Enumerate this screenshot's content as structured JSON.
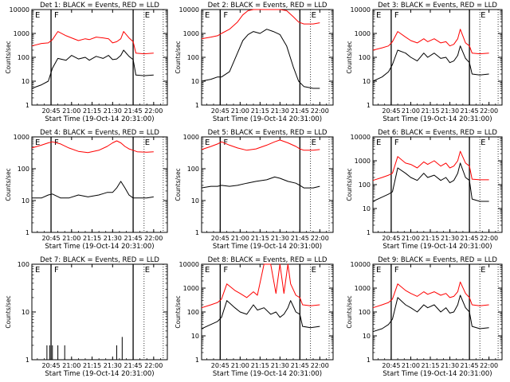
{
  "figure": {
    "xlabel_prefix": "Start Time",
    "start_time": "(19-Oct-14 20:31:00)",
    "ylabel": "Counts/sec",
    "x_ticks": [
      "20:45",
      "21:00",
      "21:15",
      "21:30",
      "21:45",
      "22:00"
    ],
    "marker_labels": [
      "E",
      "F",
      "E"
    ],
    "colors": {
      "events": "#000000",
      "lld": "#ff0000"
    }
  },
  "chart_data": [
    {
      "type": "line",
      "title": "Det 1: BLACK = Events, RED = LLD",
      "ylim": [
        1,
        10000
      ],
      "yscale": "log",
      "y_tick_labels": [
        "1",
        "10",
        "100",
        "1000",
        "10000"
      ],
      "x_range": [
        "20:31",
        "22:10"
      ],
      "markers": [
        "20:45",
        "21:45"
      ],
      "dotted_lines": [
        "21:53",
        "22:07"
      ],
      "series": [
        {
          "name": "BLACK = Events",
          "color": "#000000",
          "x": [
            "20:31",
            "20:38",
            "20:43",
            "20:46",
            "20:50",
            "20:56",
            "21:00",
            "21:05",
            "21:10",
            "21:13",
            "21:18",
            "21:23",
            "21:27",
            "21:30",
            "21:33",
            "21:36",
            "21:38",
            "21:42",
            "21:45",
            "21:47",
            "21:53",
            "22:00"
          ],
          "y": [
            5,
            7,
            10,
            35,
            90,
            75,
            120,
            85,
            100,
            75,
            110,
            90,
            120,
            80,
            85,
            120,
            200,
            110,
            80,
            18,
            17,
            18
          ]
        },
        {
          "name": "RED = LLD",
          "color": "#ff0000",
          "x": [
            "20:31",
            "20:38",
            "20:43",
            "20:46",
            "20:50",
            "20:56",
            "21:00",
            "21:05",
            "21:10",
            "21:13",
            "21:18",
            "21:23",
            "21:27",
            "21:30",
            "21:33",
            "21:36",
            "21:38",
            "21:42",
            "21:45",
            "21:47",
            "21:53",
            "22:00"
          ],
          "y": [
            300,
            380,
            400,
            550,
            1200,
            800,
            650,
            500,
            600,
            550,
            700,
            650,
            600,
            400,
            450,
            600,
            1200,
            650,
            450,
            150,
            140,
            150
          ]
        }
      ]
    },
    {
      "type": "line",
      "title": "Det 2: BLACK = Events, RED = LLD",
      "ylim": [
        1,
        10000
      ],
      "yscale": "log",
      "y_tick_labels": [
        "1",
        "10",
        "100",
        "1000",
        "10000"
      ],
      "x_range": [
        "20:31",
        "22:10"
      ],
      "markers": [
        "20:45",
        "21:45"
      ],
      "dotted_lines": [
        "21:53",
        "22:07"
      ],
      "series": [
        {
          "name": "BLACK = Events",
          "color": "#000000",
          "x": [
            "20:31",
            "20:38",
            "20:43",
            "20:46",
            "20:52",
            "20:58",
            "21:02",
            "21:06",
            "21:10",
            "21:15",
            "21:20",
            "21:25",
            "21:30",
            "21:35",
            "21:40",
            "21:44",
            "21:48",
            "21:55",
            "22:00"
          ],
          "y": [
            10,
            12,
            15,
            15,
            25,
            150,
            500,
            900,
            1200,
            1000,
            1500,
            1200,
            900,
            300,
            40,
            10,
            6,
            5,
            5
          ]
        },
        {
          "name": "RED = LLD",
          "color": "#ff0000",
          "x": [
            "20:31",
            "20:38",
            "20:43",
            "20:46",
            "20:52",
            "20:58",
            "21:02",
            "21:06",
            "21:10",
            "21:15",
            "21:20",
            "21:25",
            "21:30",
            "21:35",
            "21:40",
            "21:44",
            "21:48",
            "21:55",
            "22:00"
          ],
          "y": [
            600,
            700,
            800,
            1000,
            1500,
            3000,
            6000,
            9000,
            10000,
            10000,
            10000,
            10000,
            10000,
            9000,
            5000,
            3000,
            2500,
            2500,
            2800
          ]
        }
      ]
    },
    {
      "type": "line",
      "title": "Det 3: BLACK = Events, RED = LLD",
      "ylim": [
        1,
        10000
      ],
      "yscale": "log",
      "y_tick_labels": [
        "1",
        "10",
        "100",
        "1000",
        "10000"
      ],
      "x_range": [
        "20:31",
        "22:10"
      ],
      "markers": [
        "20:45",
        "21:45"
      ],
      "dotted_lines": [
        "21:53",
        "22:07"
      ],
      "series": [
        {
          "name": "BLACK = Events",
          "color": "#000000",
          "x": [
            "20:31",
            "20:38",
            "20:43",
            "20:46",
            "20:50",
            "20:56",
            "21:00",
            "21:05",
            "21:10",
            "21:13",
            "21:18",
            "21:23",
            "21:27",
            "21:30",
            "21:33",
            "21:36",
            "21:38",
            "21:42",
            "21:45",
            "21:47",
            "21:53",
            "22:00"
          ],
          "y": [
            10,
            15,
            25,
            50,
            200,
            150,
            100,
            70,
            150,
            100,
            150,
            90,
            100,
            60,
            70,
            120,
            300,
            90,
            60,
            20,
            18,
            20
          ]
        },
        {
          "name": "RED = LLD",
          "color": "#ff0000",
          "x": [
            "20:31",
            "20:38",
            "20:43",
            "20:46",
            "20:50",
            "20:56",
            "21:00",
            "21:05",
            "21:10",
            "21:13",
            "21:18",
            "21:23",
            "21:27",
            "21:30",
            "21:33",
            "21:36",
            "21:38",
            "21:42",
            "21:45",
            "21:47",
            "21:53",
            "22:00"
          ],
          "y": [
            200,
            250,
            300,
            450,
            1200,
            700,
            500,
            400,
            600,
            450,
            600,
            400,
            450,
            300,
            350,
            600,
            1500,
            400,
            300,
            150,
            140,
            150
          ]
        }
      ]
    },
    {
      "type": "line",
      "title": "Det 4: BLACK = Events, RED = LLD",
      "ylim": [
        1,
        1000
      ],
      "yscale": "log",
      "y_tick_labels": [
        "1",
        "10",
        "100",
        "1000"
      ],
      "x_range": [
        "20:31",
        "22:10"
      ],
      "markers": [
        "20:45",
        "21:45"
      ],
      "dotted_lines": [
        "21:53",
        "22:07"
      ],
      "series": [
        {
          "name": "BLACK = Events",
          "color": "#000000",
          "x": [
            "20:31",
            "20:38",
            "20:43",
            "20:46",
            "20:52",
            "20:58",
            "21:05",
            "21:12",
            "21:20",
            "21:26",
            "21:30",
            "21:33",
            "21:36",
            "21:39",
            "21:42",
            "21:45",
            "21:48",
            "21:55",
            "22:00"
          ],
          "y": [
            12,
            12,
            15,
            16,
            12,
            12,
            15,
            13,
            15,
            18,
            18,
            25,
            40,
            25,
            15,
            12,
            12,
            12,
            13
          ]
        },
        {
          "name": "RED = LLD",
          "color": "#ff0000",
          "x": [
            "20:31",
            "20:38",
            "20:43",
            "20:46",
            "20:52",
            "20:58",
            "21:05",
            "21:12",
            "21:20",
            "21:26",
            "21:30",
            "21:33",
            "21:36",
            "21:39",
            "21:42",
            "21:45",
            "21:48",
            "21:55",
            "22:00"
          ],
          "y": [
            450,
            550,
            650,
            700,
            600,
            450,
            350,
            320,
            380,
            500,
            650,
            750,
            650,
            500,
            420,
            380,
            340,
            330,
            340
          ]
        }
      ]
    },
    {
      "type": "line",
      "title": "Det 5: BLACK = Events, RED = LLD",
      "ylim": [
        1,
        1000
      ],
      "yscale": "log",
      "y_tick_labels": [
        "1",
        "10",
        "100",
        "1000"
      ],
      "x_range": [
        "20:31",
        "22:10"
      ],
      "markers": [
        "20:45",
        "21:45"
      ],
      "dotted_lines": [
        "21:53",
        "22:07"
      ],
      "series": [
        {
          "name": "BLACK = Events",
          "color": "#000000",
          "x": [
            "20:31",
            "20:38",
            "20:43",
            "20:46",
            "20:52",
            "20:58",
            "21:05",
            "21:12",
            "21:20",
            "21:26",
            "21:30",
            "21:36",
            "21:42",
            "21:45",
            "21:48",
            "21:55",
            "22:00"
          ],
          "y": [
            25,
            28,
            28,
            30,
            28,
            30,
            35,
            40,
            45,
            55,
            50,
            40,
            35,
            30,
            25,
            25,
            28
          ]
        },
        {
          "name": "RED = LLD",
          "color": "#ff0000",
          "x": [
            "20:31",
            "20:38",
            "20:43",
            "20:46",
            "20:52",
            "20:58",
            "21:05",
            "21:12",
            "21:20",
            "21:26",
            "21:30",
            "21:36",
            "21:42",
            "21:45",
            "21:48",
            "21:55",
            "22:00"
          ],
          "y": [
            400,
            500,
            600,
            700,
            550,
            450,
            380,
            420,
            550,
            700,
            800,
            650,
            500,
            420,
            380,
            380,
            400
          ]
        }
      ]
    },
    {
      "type": "line",
      "title": "Det 6: BLACK = Events, RED = LLD",
      "ylim": [
        1,
        10000
      ],
      "yscale": "log",
      "y_tick_labels": [
        "1",
        "10",
        "100",
        "1000",
        "10000"
      ],
      "x_range": [
        "20:31",
        "22:10"
      ],
      "markers": [
        "20:45",
        "21:45"
      ],
      "dotted_lines": [
        "21:53",
        "22:07"
      ],
      "series": [
        {
          "name": "BLACK = Events",
          "color": "#000000",
          "x": [
            "20:31",
            "20:38",
            "20:43",
            "20:46",
            "20:50",
            "20:56",
            "21:00",
            "21:05",
            "21:10",
            "21:13",
            "21:18",
            "21:23",
            "21:27",
            "21:30",
            "21:33",
            "21:36",
            "21:38",
            "21:42",
            "21:45",
            "21:47",
            "21:53",
            "22:00"
          ],
          "y": [
            20,
            30,
            40,
            50,
            500,
            300,
            200,
            150,
            300,
            200,
            250,
            150,
            200,
            120,
            150,
            300,
            800,
            200,
            150,
            25,
            20,
            20
          ]
        },
        {
          "name": "RED = LLD",
          "color": "#ff0000",
          "x": [
            "20:31",
            "20:38",
            "20:43",
            "20:46",
            "20:50",
            "20:56",
            "21:00",
            "21:05",
            "21:10",
            "21:13",
            "21:18",
            "21:23",
            "21:27",
            "21:30",
            "21:33",
            "21:36",
            "21:38",
            "21:42",
            "21:45",
            "21:47",
            "21:53",
            "22:00"
          ],
          "y": [
            150,
            200,
            250,
            300,
            1500,
            800,
            700,
            500,
            900,
            700,
            1000,
            600,
            800,
            500,
            600,
            1000,
            2500,
            800,
            600,
            170,
            160,
            160
          ]
        }
      ]
    },
    {
      "type": "line",
      "title": "Det 7: BLACK = Events, RED = LLD",
      "ylim": [
        1,
        100
      ],
      "yscale": "log",
      "y_tick_labels": [
        "1",
        "10",
        "100"
      ],
      "x_range": [
        "20:31",
        "22:10"
      ],
      "markers": [
        "20:45",
        "21:45"
      ],
      "dotted_lines": [
        "21:53",
        "22:07"
      ],
      "series": [
        {
          "name": "BLACK = Events",
          "color": "#000000",
          "x": [
            "20:42",
            "20:44",
            "20:46",
            "20:50",
            "20:55",
            "21:33",
            "21:37"
          ],
          "y": [
            2,
            2,
            2,
            2,
            2,
            2,
            3
          ]
        }
      ]
    },
    {
      "type": "line",
      "title": "Det 8: BLACK = Events, RED = LLD",
      "ylim": [
        1,
        10000
      ],
      "yscale": "log",
      "y_tick_labels": [
        "1",
        "10",
        "100",
        "1000",
        "10000"
      ],
      "x_range": [
        "20:31",
        "22:10"
      ],
      "markers": [
        "20:45",
        "21:45"
      ],
      "dotted_lines": [
        "21:53",
        "22:07"
      ],
      "series": [
        {
          "name": "BLACK = Events",
          "color": "#000000",
          "x": [
            "20:31",
            "20:38",
            "20:43",
            "20:46",
            "20:50",
            "20:56",
            "21:00",
            "21:05",
            "21:10",
            "21:13",
            "21:18",
            "21:23",
            "21:27",
            "21:30",
            "21:33",
            "21:36",
            "21:38",
            "21:42",
            "21:45",
            "21:47",
            "21:53",
            "22:00"
          ],
          "y": [
            20,
            30,
            40,
            60,
            300,
            150,
            100,
            80,
            200,
            120,
            150,
            80,
            100,
            60,
            80,
            150,
            300,
            100,
            80,
            25,
            22,
            25
          ]
        },
        {
          "name": "RED = LLD",
          "color": "#ff0000",
          "x": [
            "20:31",
            "20:38",
            "20:43",
            "20:46",
            "20:50",
            "20:56",
            "21:00",
            "21:05",
            "21:10",
            "21:13",
            "21:18",
            "21:23",
            "21:27",
            "21:30",
            "21:33",
            "21:36",
            "21:38",
            "21:42",
            "21:45",
            "21:47",
            "21:53",
            "22:00"
          ],
          "y": [
            150,
            200,
            250,
            350,
            1500,
            800,
            600,
            400,
            700,
            500,
            10000,
            10000,
            600,
            10000,
            600,
            10000,
            1500,
            500,
            400,
            200,
            180,
            200
          ]
        }
      ]
    },
    {
      "type": "line",
      "title": "Det 9: BLACK = Events, RED = LLD",
      "ylim": [
        1,
        10000
      ],
      "yscale": "log",
      "y_tick_labels": [
        "1",
        "10",
        "100",
        "1000",
        "10000"
      ],
      "x_range": [
        "20:31",
        "22:10"
      ],
      "markers": [
        "20:45",
        "21:45"
      ],
      "dotted_lines": [
        "21:53",
        "22:07"
      ],
      "series": [
        {
          "name": "BLACK = Events",
          "color": "#000000",
          "x": [
            "20:31",
            "20:38",
            "20:43",
            "20:46",
            "20:50",
            "20:56",
            "21:00",
            "21:05",
            "21:10",
            "21:13",
            "21:18",
            "21:23",
            "21:27",
            "21:30",
            "21:33",
            "21:36",
            "21:38",
            "21:42",
            "21:45",
            "21:47",
            "21:53",
            "22:00"
          ],
          "y": [
            15,
            20,
            30,
            50,
            400,
            200,
            150,
            100,
            200,
            150,
            200,
            100,
            150,
            90,
            100,
            200,
            500,
            150,
            100,
            25,
            20,
            22
          ]
        },
        {
          "name": "RED = LLD",
          "color": "#ff0000",
          "x": [
            "20:31",
            "20:38",
            "20:43",
            "20:46",
            "20:50",
            "20:56",
            "21:00",
            "21:05",
            "21:10",
            "21:13",
            "21:18",
            "21:23",
            "21:27",
            "21:30",
            "21:33",
            "21:36",
            "21:38",
            "21:42",
            "21:45",
            "21:47",
            "21:53",
            "22:00"
          ],
          "y": [
            150,
            200,
            250,
            350,
            1500,
            800,
            600,
            450,
            700,
            550,
            700,
            500,
            600,
            400,
            450,
            700,
            1800,
            600,
            400,
            200,
            180,
            200
          ]
        }
      ]
    }
  ]
}
